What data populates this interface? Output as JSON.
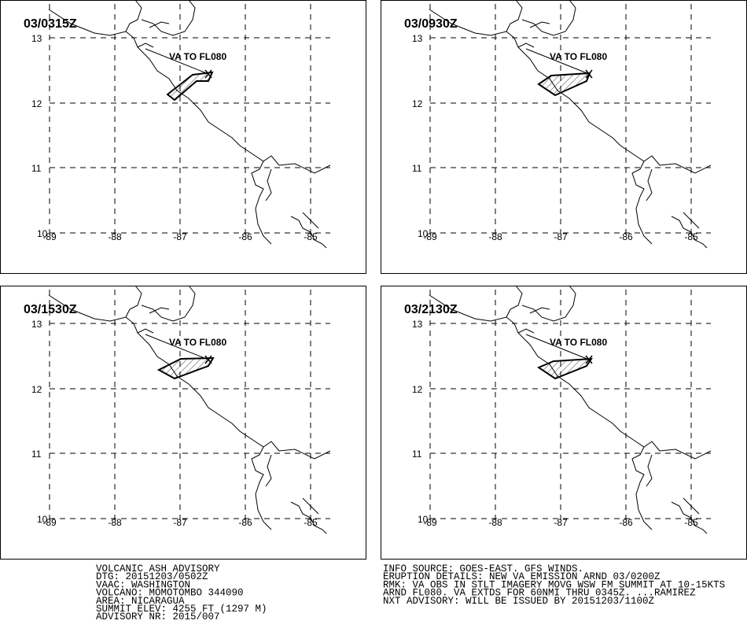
{
  "panels": [
    {
      "time": "03/0315Z",
      "label": "VA TO FL080"
    },
    {
      "time": "03/0930Z",
      "label": "VA TO FL080"
    },
    {
      "time": "03/1530Z",
      "label": "VA TO FL080"
    },
    {
      "time": "03/2130Z",
      "label": "VA TO FL080"
    }
  ],
  "grid": {
    "lat_labels": [
      "13",
      "12",
      "11",
      "10"
    ],
    "lon_labels": [
      "-89",
      "-88",
      "-87",
      "-86",
      "-85"
    ]
  },
  "advisory": {
    "left": [
      "VOLCANIC ASH ADVISORY",
      "DTG: 20151203/0502Z",
      "VAAC: WASHINGTON",
      "VOLCANO: MOMOTOMBO 344090",
      "AREA: NICARAGUA",
      "SUMMIT ELEV: 4255 FT (1297 M)",
      "ADVISORY NR: 2015/007"
    ],
    "right": [
      "INFO SOURCE: GOES-EAST. GFS WINDS.",
      "ERUPTION DETAILS: NEW VA EMISSION ARND 03/0200Z",
      "RMK: VA OBS IN STLT IMAGERY MOVG WSW FM SUMMIT AT 10-15KTS",
      "ARND FL080. VA EXTDS FOR 60NMI THRU 0345Z. ...RAMIREZ",
      "NXT ADVISORY: WILL BE ISSUED BY 20151203/1100Z"
    ]
  }
}
